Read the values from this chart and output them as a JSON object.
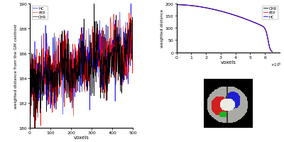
{
  "left_ylabel": "weighted distance from the GM centroid",
  "left_xlabel": "voxels",
  "left_xlim": [
    0,
    500
  ],
  "left_ylim": [
    180,
    190
  ],
  "left_yticks": [
    180,
    182,
    184,
    186,
    188,
    190
  ],
  "left_xticks": [
    0,
    100,
    200,
    300,
    400,
    500
  ],
  "left_legend": [
    "HC",
    "FEP",
    "CHR"
  ],
  "left_colors": [
    "blue",
    "red",
    "black"
  ],
  "right_ylabel": "weighted distance",
  "right_xlabel": "voxels",
  "right_xlim": [
    0,
    700000.0
  ],
  "right_ylim": [
    0,
    200
  ],
  "right_yticks": [
    0,
    50,
    100,
    150,
    200
  ],
  "right_legend": [
    "CHR",
    "FEP",
    "HC"
  ],
  "right_colors": [
    "black",
    "red",
    "blue"
  ],
  "right_xtick_labels": [
    "0",
    "1",
    "2",
    "3",
    "4",
    "5",
    "6"
  ],
  "right_xtick_vals": [
    0,
    100000.0,
    200000.0,
    300000.0,
    400000.0,
    500000.0,
    600000.0
  ]
}
